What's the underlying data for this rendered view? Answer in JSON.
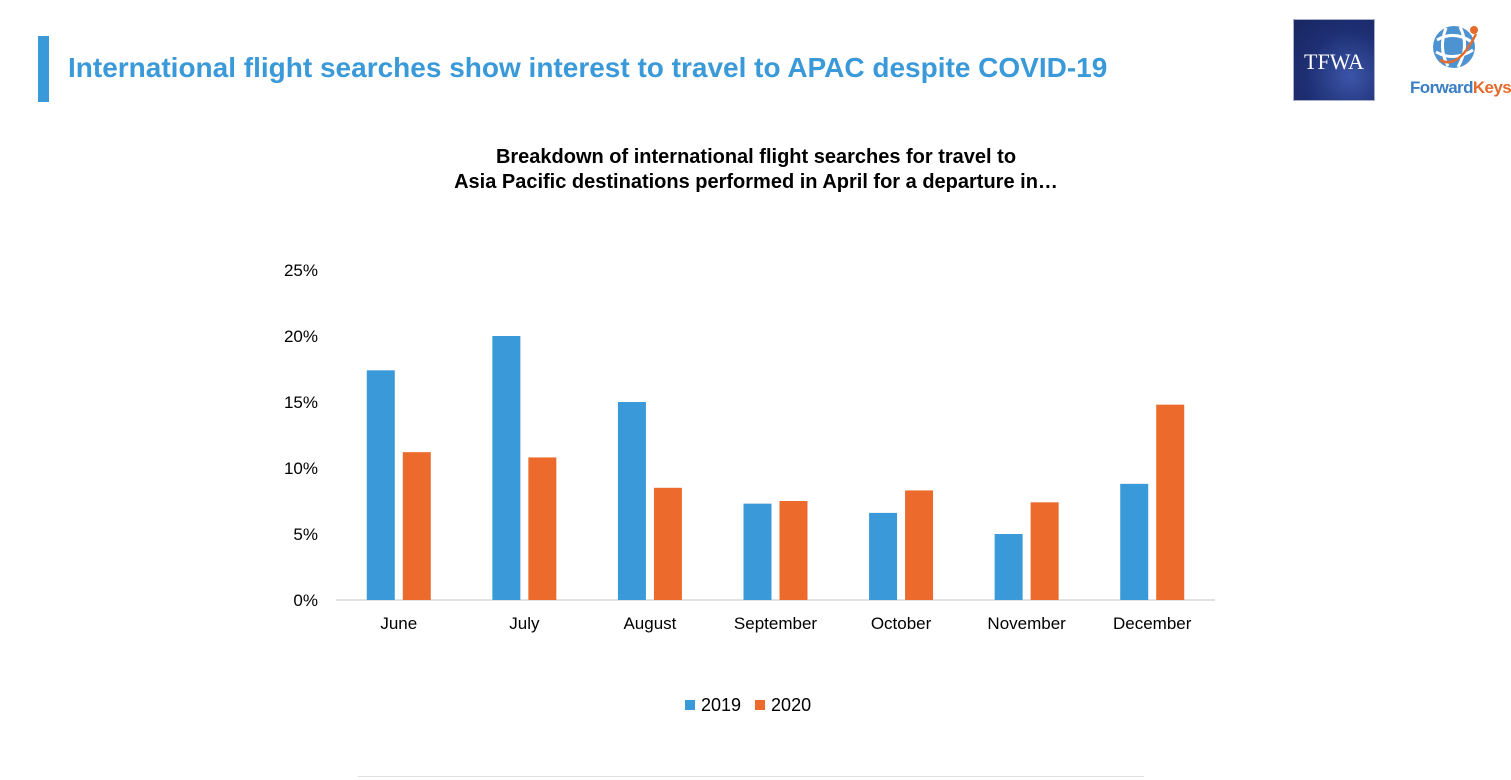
{
  "slide": {
    "title": "International flight searches show interest to travel to APAC despite COVID-19"
  },
  "logos": {
    "tfwa": "TFWA",
    "forwardkeys_part1": "Forward",
    "forwardkeys_part2": "Keys"
  },
  "colors": {
    "accent": "#3a9ad9",
    "series_2019": "#3a9ad9",
    "series_2020": "#ec6a2c",
    "axis": "#d9d9d9"
  },
  "chart_data": {
    "type": "bar",
    "title": [
      "Breakdown of international flight searches for travel to",
      "Asia Pacific destinations performed in April for a departure in…"
    ],
    "categories": [
      "June",
      "July",
      "August",
      "September",
      "October",
      "November",
      "December"
    ],
    "series": [
      {
        "name": "2019",
        "values": [
          17.4,
          20.0,
          15.0,
          7.3,
          6.6,
          5.0,
          8.8
        ]
      },
      {
        "name": "2020",
        "values": [
          11.2,
          10.8,
          8.5,
          7.5,
          8.3,
          7.4,
          14.8
        ]
      }
    ],
    "ylim": [
      0,
      25
    ],
    "yticks": [
      "0%",
      "5%",
      "10%",
      "15%",
      "20%",
      "25%"
    ],
    "ytick_values": [
      0,
      5,
      10,
      15,
      20,
      25
    ],
    "grid": false,
    "legend_position": "bottom",
    "xlabel": "",
    "ylabel": ""
  }
}
